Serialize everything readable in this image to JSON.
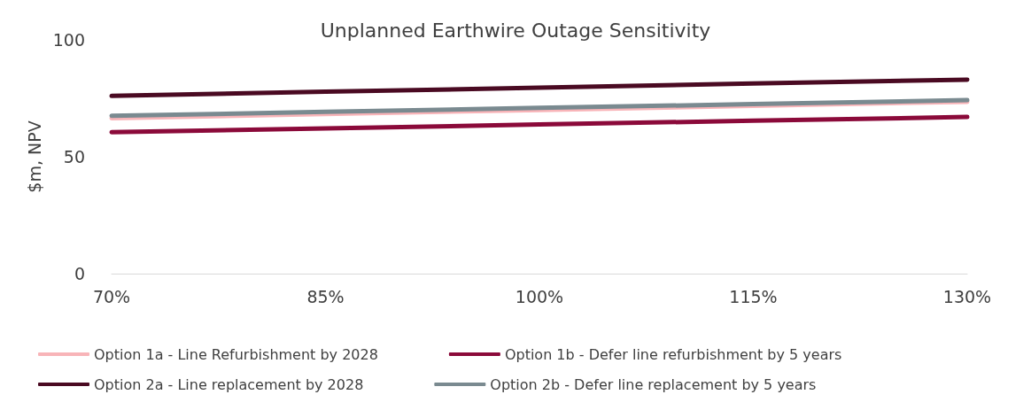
{
  "chart_data": {
    "type": "line",
    "title": "Unplanned Earthwire Outage Sensitivity",
    "ylabel": "$m, NPV",
    "categories": [
      "70%",
      "85%",
      "100%",
      "115%",
      "130%"
    ],
    "ylim": [
      0,
      100
    ],
    "yticks": [
      0,
      50,
      100
    ],
    "grid": false,
    "legend": "bottom",
    "marker": "none",
    "line_style": "solid",
    "series": [
      {
        "name": "Option 1a - Line Refurbishment by 2028",
        "color": "#f8b4b8",
        "values": [
          66.5,
          68.3,
          70,
          71.8,
          73.5
        ]
      },
      {
        "name": "Option 1b - Defer line refurbishment by 5 years",
        "color": "#8b0a3a",
        "values": [
          60.5,
          62.1,
          63.8,
          65.4,
          67
        ]
      },
      {
        "name": "Option 2a - Line replacement by 2028",
        "color": "#4a0a22",
        "values": [
          76,
          77.8,
          79.5,
          81.3,
          83
        ]
      },
      {
        "name": "Option 2b - Defer line replacement by 5 years",
        "color": "#7a8a90",
        "values": [
          67.5,
          69.2,
          70.9,
          72.5,
          74.2
        ]
      }
    ]
  }
}
